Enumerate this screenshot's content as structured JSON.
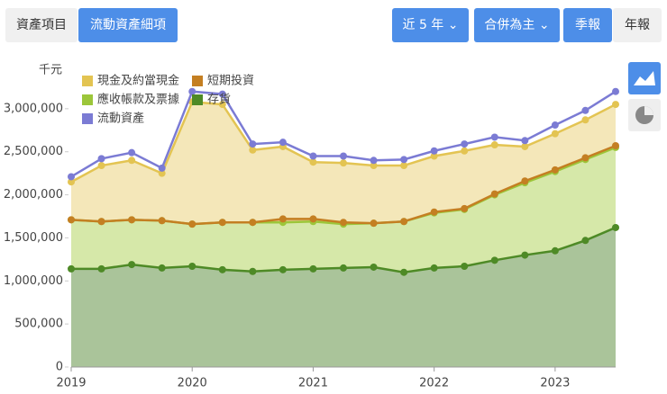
{
  "ui": {
    "tabs": [
      "資產項目",
      "流動資產細項"
    ],
    "period": "近 5 年",
    "scope": "合併為主",
    "freq": [
      "季報",
      "年報"
    ]
  },
  "chart_data": {
    "type": "area",
    "stacked": true,
    "y_unit": "千元",
    "categories": [
      "2019",
      null,
      null,
      null,
      "2020",
      null,
      null,
      null,
      "2021",
      null,
      null,
      null,
      "2022",
      null,
      null,
      null,
      "2023",
      null,
      null
    ],
    "ylim": [
      0,
      3500000
    ],
    "yticks": [
      0,
      {
        "value": 500000,
        "label": "500,000"
      },
      {
        "value": 1000000,
        "label": "1,000,000"
      },
      {
        "value": 1500000,
        "label": "1,500,000"
      },
      {
        "value": 2000000,
        "label": "2,000,000"
      },
      {
        "value": 2500000,
        "label": "2,500,000"
      },
      {
        "value": 3000000,
        "label": "3,000,000"
      }
    ],
    "series": [
      {
        "name": "現金及約當現金",
        "color": "#e3c452",
        "fill": "#f4e7b9",
        "values": [
          440000,
          650000,
          690000,
          550000,
          1420000,
          1370000,
          840000,
          840000,
          660000,
          690000,
          670000,
          650000,
          650000,
          670000,
          570000,
          400000,
          420000,
          440000,
          480000
        ]
      },
      {
        "name": "短期投資",
        "color": "#c47f22",
        "fill": "#e7c58a",
        "values": [
          0,
          0,
          0,
          0,
          0,
          0,
          0,
          40000,
          30000,
          20000,
          0,
          0,
          10000,
          10000,
          10000,
          20000,
          20000,
          20000,
          20000
        ]
      },
      {
        "name": "應收帳款及票據",
        "color": "#9cc63a",
        "fill": "#d6e8a9",
        "values": [
          570000,
          550000,
          520000,
          550000,
          490000,
          550000,
          570000,
          550000,
          550000,
          510000,
          510000,
          590000,
          640000,
          660000,
          760000,
          840000,
          920000,
          940000,
          930000
        ]
      },
      {
        "name": "存貨",
        "color": "#4e8a26",
        "fill": "#aac49a",
        "values": [
          1140000,
          1140000,
          1190000,
          1150000,
          1170000,
          1130000,
          1110000,
          1130000,
          1140000,
          1150000,
          1160000,
          1100000,
          1150000,
          1170000,
          1240000,
          1300000,
          1350000,
          1470000,
          1620000
        ]
      },
      {
        "name": "流動資產",
        "color": "#7b7bd4",
        "type": "line",
        "values": [
          2210000,
          2420000,
          2490000,
          2310000,
          3200000,
          3170000,
          2590000,
          2610000,
          2450000,
          2450000,
          2400000,
          2410000,
          2510000,
          2590000,
          2670000,
          2630000,
          2810000,
          2980000,
          3200000
        ]
      }
    ]
  }
}
